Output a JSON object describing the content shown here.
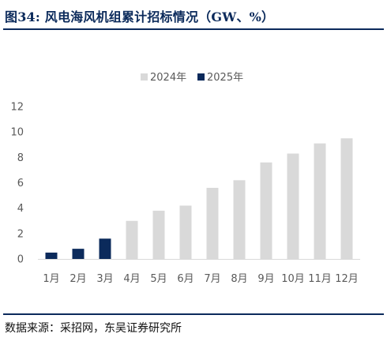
{
  "figure": {
    "title": "图34:  风电海风机组累计招标情况（GW、%）",
    "source": "数据来源：采招网，东吴证券研究所"
  },
  "colors": {
    "title": "#0b2a5b",
    "series_2024": "#d9d9d9",
    "series_2025": "#0b2a5b",
    "axis_text": "#595959"
  },
  "chart_data": {
    "type": "bar",
    "title": "",
    "xlabel": "",
    "ylabel": "",
    "categories": [
      "1月",
      "2月",
      "3月",
      "4月",
      "5月",
      "6月",
      "7月",
      "8月",
      "9月",
      "10月",
      "11月",
      "12月"
    ],
    "series": [
      {
        "name": "2024年",
        "values": [
          0.5,
          0.7,
          0.6,
          3.0,
          3.8,
          4.2,
          5.6,
          6.2,
          7.6,
          8.3,
          9.1,
          9.5
        ]
      },
      {
        "name": "2025年",
        "values": [
          0.5,
          0.8,
          1.6,
          null,
          null,
          null,
          null,
          null,
          null,
          null,
          null,
          null
        ]
      }
    ],
    "ylim": [
      0,
      12
    ],
    "yticks": [
      0,
      2,
      4,
      6,
      8,
      10,
      12
    ],
    "grid": false,
    "legend": "top-center",
    "overlap": true
  }
}
